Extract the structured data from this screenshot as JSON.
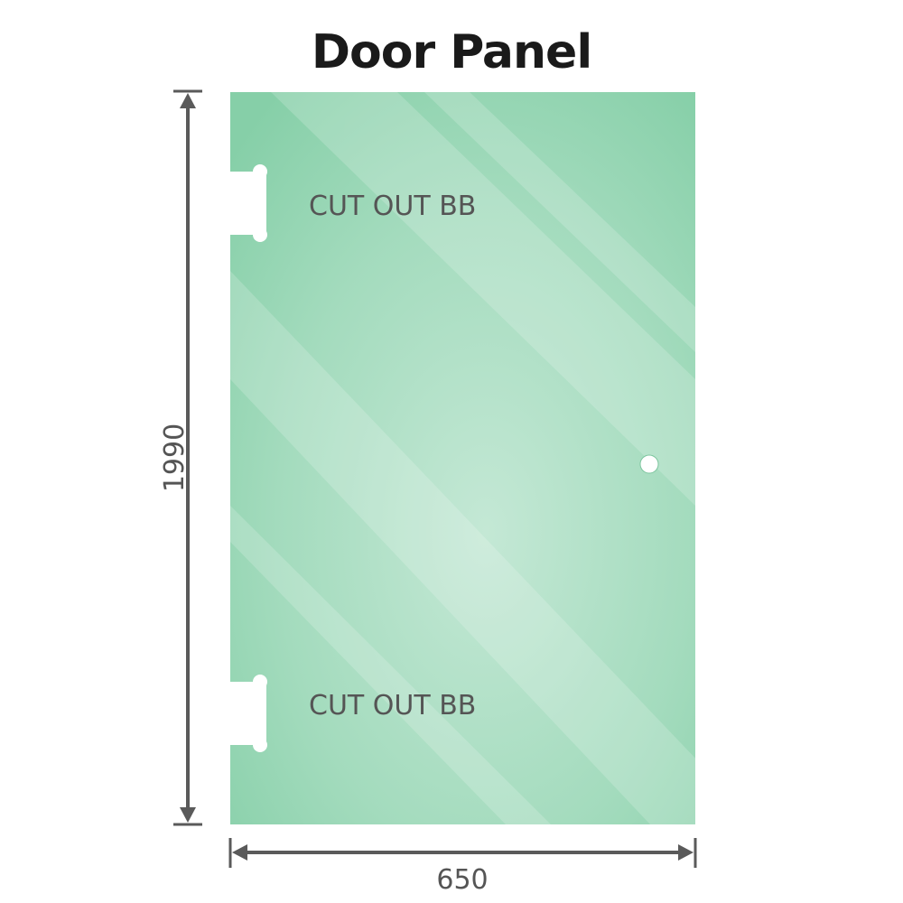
{
  "title": "Door Panel",
  "cutouts": [
    {
      "label": "CUT OUT BB"
    },
    {
      "label": "CUT OUT BB"
    }
  ],
  "dimensions": {
    "height": "1990",
    "width": "650"
  },
  "colors": {
    "glass_edge": "#86cfa8",
    "glass_center": "#c4e8d5",
    "dimension_line": "#5a5a5a"
  }
}
